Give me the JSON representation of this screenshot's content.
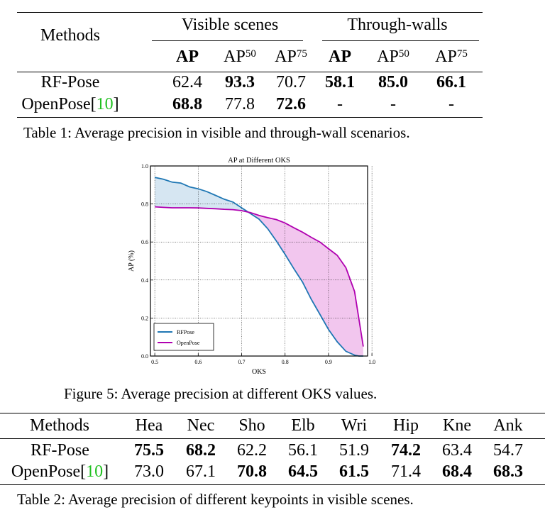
{
  "table1": {
    "methods_header": "Methods",
    "group_visible": "Visible scenes",
    "group_through": "Through-walls",
    "subheaders": [
      "AP",
      "AP",
      "AP",
      "AP",
      "AP",
      "AP"
    ],
    "subheader_sups": [
      "",
      "50",
      "75",
      "",
      "50",
      "75"
    ],
    "rows": [
      {
        "method": "RF-Pose",
        "cite": "",
        "values": [
          "62.4",
          "93.3",
          "70.7",
          "58.1",
          "85.0",
          "66.1"
        ],
        "bold": [
          false,
          true,
          false,
          true,
          true,
          true
        ]
      },
      {
        "method": "OpenPose[",
        "cite": "10",
        "cite_close": "]",
        "values": [
          "68.8",
          "77.8",
          "72.6",
          "-",
          "-",
          "-"
        ],
        "bold": [
          true,
          false,
          true,
          false,
          false,
          false
        ]
      }
    ],
    "caption": "Table 1: Average precision in visible and through-wall scenarios."
  },
  "figure": {
    "caption": "Figure 5: Average precision at different OKS values.",
    "chart_data": {
      "type": "line",
      "title": "AP at Different OKS",
      "xlabel": "OKS",
      "ylabel": "AP (%)",
      "xlim": [
        0.49,
        0.99
      ],
      "ylim": [
        0.0,
        1.0
      ],
      "xticks": [
        "0.5",
        "0.6",
        "0.7",
        "0.8",
        "0.9",
        "1.0"
      ],
      "yticks": [
        "0.0",
        "0.2",
        "0.4",
        "0.6",
        "0.8",
        "1.0"
      ],
      "legend_position": "lower-left",
      "grid": true,
      "series": [
        {
          "name": "RFPose",
          "color": "#1f77b4",
          "x": [
            0.5,
            0.52,
            0.54,
            0.56,
            0.58,
            0.6,
            0.62,
            0.64,
            0.66,
            0.68,
            0.7,
            0.72,
            0.74,
            0.76,
            0.78,
            0.8,
            0.82,
            0.84,
            0.86,
            0.88,
            0.9,
            0.92,
            0.94,
            0.96,
            0.97,
            0.98
          ],
          "y": [
            0.94,
            0.93,
            0.915,
            0.91,
            0.89,
            0.88,
            0.865,
            0.845,
            0.825,
            0.81,
            0.78,
            0.75,
            0.72,
            0.67,
            0.605,
            0.535,
            0.46,
            0.39,
            0.3,
            0.22,
            0.14,
            0.075,
            0.025,
            0.005,
            0.0,
            0.0
          ]
        },
        {
          "name": "OpenPose",
          "color": "#b000b0",
          "x": [
            0.5,
            0.52,
            0.54,
            0.56,
            0.58,
            0.6,
            0.62,
            0.64,
            0.66,
            0.68,
            0.7,
            0.72,
            0.74,
            0.76,
            0.78,
            0.8,
            0.82,
            0.84,
            0.86,
            0.88,
            0.9,
            0.92,
            0.94,
            0.96,
            0.98
          ],
          "y": [
            0.785,
            0.782,
            0.78,
            0.78,
            0.78,
            0.779,
            0.777,
            0.775,
            0.772,
            0.77,
            0.765,
            0.755,
            0.74,
            0.728,
            0.718,
            0.7,
            0.675,
            0.652,
            0.625,
            0.6,
            0.565,
            0.53,
            0.465,
            0.34,
            0.05
          ]
        }
      ],
      "fill_colors": {
        "rfpose_above": "#d6e6f2",
        "openpose_above": "#f2c6ee"
      }
    }
  },
  "table2": {
    "headers": [
      "Methods",
      "Hea",
      "Nec",
      "Sho",
      "Elb",
      "Wri",
      "Hip",
      "Kne",
      "Ank"
    ],
    "rows": [
      {
        "method": "RF-Pose",
        "cite": "",
        "values": [
          "75.5",
          "68.2",
          "62.2",
          "56.1",
          "51.9",
          "74.2",
          "63.4",
          "54.7"
        ],
        "bold": [
          true,
          true,
          false,
          false,
          false,
          true,
          false,
          false
        ]
      },
      {
        "method": "OpenPose[",
        "cite": "10",
        "cite_close": "]",
        "values": [
          "73.0",
          "67.1",
          "70.8",
          "64.5",
          "61.5",
          "71.4",
          "68.4",
          "68.3"
        ],
        "bold": [
          false,
          false,
          true,
          true,
          true,
          false,
          true,
          true
        ]
      }
    ],
    "caption": "Table 2: Average precision of different keypoints in visible scenes."
  }
}
